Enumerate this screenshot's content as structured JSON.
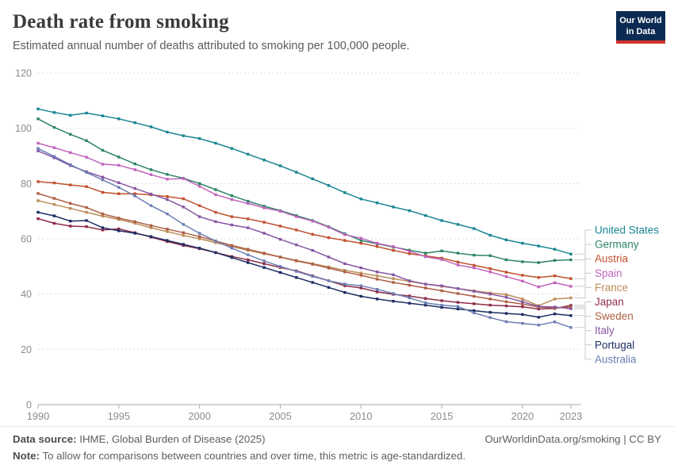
{
  "header": {
    "title": "Death rate from smoking",
    "subtitle": "Estimated annual number of deaths attributed to smoking per 100,000 people.",
    "logo": {
      "line1": "Our World",
      "line2": "in Data",
      "bg_color": "#0c2b52",
      "accent_color": "#d1342a"
    }
  },
  "chart_data": {
    "type": "line",
    "title": "Death rate from smoking",
    "xlabel": "",
    "ylabel": "",
    "ylim": [
      0,
      120
    ],
    "yticks": [
      0,
      20,
      40,
      60,
      80,
      100,
      120
    ],
    "xticks": [
      1990,
      1995,
      2000,
      2005,
      2010,
      2015,
      2020,
      2023
    ],
    "grid": "horizontal-dashed",
    "legend_position": "right",
    "point_markers": true,
    "x": [
      1990,
      1991,
      1992,
      1993,
      1994,
      1995,
      1996,
      1997,
      1998,
      1999,
      2000,
      2001,
      2002,
      2003,
      2004,
      2005,
      2006,
      2007,
      2008,
      2009,
      2010,
      2011,
      2012,
      2013,
      2014,
      2015,
      2016,
      2017,
      2018,
      2019,
      2020,
      2021,
      2022,
      2023
    ],
    "series": [
      {
        "name": "United States",
        "color": "#1a8693",
        "values": [
          107.0,
          105.7,
          104.7,
          105.5,
          104.5,
          103.4,
          102.0,
          100.5,
          98.6,
          97.3,
          96.3,
          94.6,
          92.7,
          90.6,
          88.5,
          86.4,
          84.1,
          81.7,
          79.3,
          76.7,
          74.4,
          73.0,
          71.5,
          70.2,
          68.4,
          66.6,
          65.2,
          63.7,
          61.3,
          59.6,
          58.4,
          57.4,
          56.2,
          54.5
        ]
      },
      {
        "name": "Germany",
        "color": "#2c8465",
        "values": [
          103.4,
          100.3,
          97.8,
          95.5,
          92.0,
          89.6,
          87.1,
          85.0,
          83.3,
          81.9,
          80.0,
          77.8,
          75.6,
          73.6,
          71.8,
          70.2,
          68.4,
          66.6,
          64.4,
          61.8,
          59.4,
          58.2,
          57.0,
          55.9,
          54.8,
          55.6,
          54.8,
          54.1,
          53.9,
          52.4,
          51.7,
          51.4,
          52.2,
          52.4
        ]
      },
      {
        "name": "Austria",
        "color": "#c0512f",
        "values": [
          80.7,
          80.2,
          79.5,
          78.9,
          76.8,
          76.3,
          76.3,
          75.9,
          75.3,
          74.5,
          72.0,
          69.6,
          68.0,
          67.2,
          66.0,
          64.6,
          63.2,
          61.6,
          60.4,
          59.4,
          58.4,
          57.2,
          55.8,
          54.6,
          53.8,
          53.0,
          51.6,
          50.4,
          49.2,
          47.9,
          46.8,
          46.0,
          46.6,
          45.6
        ]
      },
      {
        "name": "Spain",
        "color": "#c163bd",
        "values": [
          94.6,
          93.0,
          91.2,
          89.5,
          87.0,
          86.6,
          85.0,
          83.2,
          81.6,
          81.8,
          79.0,
          76.0,
          74.2,
          72.8,
          71.2,
          70.0,
          68.0,
          66.4,
          64.2,
          61.5,
          60.2,
          58.4,
          57.2,
          55.5,
          53.5,
          52.5,
          50.5,
          49.5,
          48.0,
          46.3,
          44.7,
          42.6,
          44.1,
          42.8
        ]
      },
      {
        "name": "France",
        "color": "#bc8e5a",
        "values": [
          73.8,
          72.4,
          71.0,
          69.6,
          68.2,
          67.0,
          65.6,
          64.0,
          62.6,
          61.2,
          60.0,
          58.6,
          57.2,
          55.8,
          54.6,
          53.4,
          52.2,
          51.0,
          49.8,
          48.6,
          47.6,
          46.6,
          45.6,
          44.6,
          43.6,
          42.8,
          42.0,
          41.2,
          40.4,
          39.8,
          38.2,
          35.8,
          38.2,
          38.6
        ]
      },
      {
        "name": "Japan",
        "color": "#8e2c48",
        "values": [
          67.3,
          65.6,
          64.6,
          64.4,
          63.2,
          63.6,
          62.2,
          60.6,
          59.0,
          57.6,
          56.4,
          55.0,
          53.6,
          52.4,
          51.0,
          49.6,
          48.4,
          46.6,
          44.8,
          43.0,
          42.2,
          40.8,
          39.9,
          39.3,
          38.4,
          37.6,
          37.0,
          36.5,
          36.0,
          35.7,
          35.4,
          34.6,
          34.8,
          35.9
        ]
      },
      {
        "name": "Sweden",
        "color": "#ae5e43",
        "values": [
          76.4,
          74.6,
          72.8,
          71.3,
          69.0,
          67.5,
          66.2,
          64.8,
          63.5,
          62.2,
          60.8,
          59.2,
          57.6,
          56.2,
          54.8,
          53.4,
          52.0,
          50.8,
          49.4,
          48.0,
          46.8,
          45.4,
          44.2,
          43.2,
          42.2,
          41.2,
          40.2,
          39.2,
          38.2,
          37.2,
          36.4,
          35.3,
          35.0,
          35.3
        ]
      },
      {
        "name": "Italy",
        "color": "#8656a5",
        "values": [
          91.8,
          89.3,
          86.5,
          84.3,
          82.3,
          80.3,
          78.2,
          76.2,
          74.2,
          71.5,
          68.0,
          66.2,
          65.0,
          64.0,
          62.0,
          59.8,
          57.8,
          55.8,
          53.4,
          51.0,
          49.5,
          48.0,
          47.0,
          44.8,
          43.6,
          43.0,
          42.0,
          41.0,
          40.0,
          38.8,
          37.2,
          35.5,
          35.3,
          34.7
        ]
      },
      {
        "name": "Portugal",
        "color": "#1d2e63",
        "values": [
          69.6,
          68.3,
          66.4,
          66.6,
          64.0,
          62.9,
          62.0,
          60.8,
          59.4,
          58.0,
          56.6,
          55.0,
          53.2,
          51.4,
          49.6,
          47.8,
          46.0,
          44.2,
          42.4,
          40.6,
          39.2,
          38.2,
          37.4,
          36.7,
          36.0,
          35.2,
          34.6,
          34.0,
          33.4,
          33.0,
          32.6,
          31.6,
          32.8,
          32.2
        ]
      },
      {
        "name": "Australia",
        "color": "#6c7eb4",
        "values": [
          92.7,
          89.8,
          86.8,
          84.0,
          81.3,
          78.6,
          75.5,
          72.0,
          69.0,
          65.2,
          62.0,
          59.2,
          56.6,
          54.2,
          52.0,
          50.0,
          48.2,
          46.4,
          44.8,
          43.6,
          43.0,
          41.7,
          40.2,
          38.6,
          36.8,
          36.0,
          35.5,
          33.2,
          31.5,
          30.0,
          29.4,
          28.8,
          29.9,
          27.9
        ]
      }
    ]
  },
  "footer": {
    "data_source_label": "Data source:",
    "data_source_value": " IHME, Global Burden of Disease (2025)",
    "note_label": "Note:",
    "note_value": " To allow for comparisons between countries and over time, this metric is age-standardized.",
    "link": "OurWorldinData.org/smoking | CC BY"
  }
}
